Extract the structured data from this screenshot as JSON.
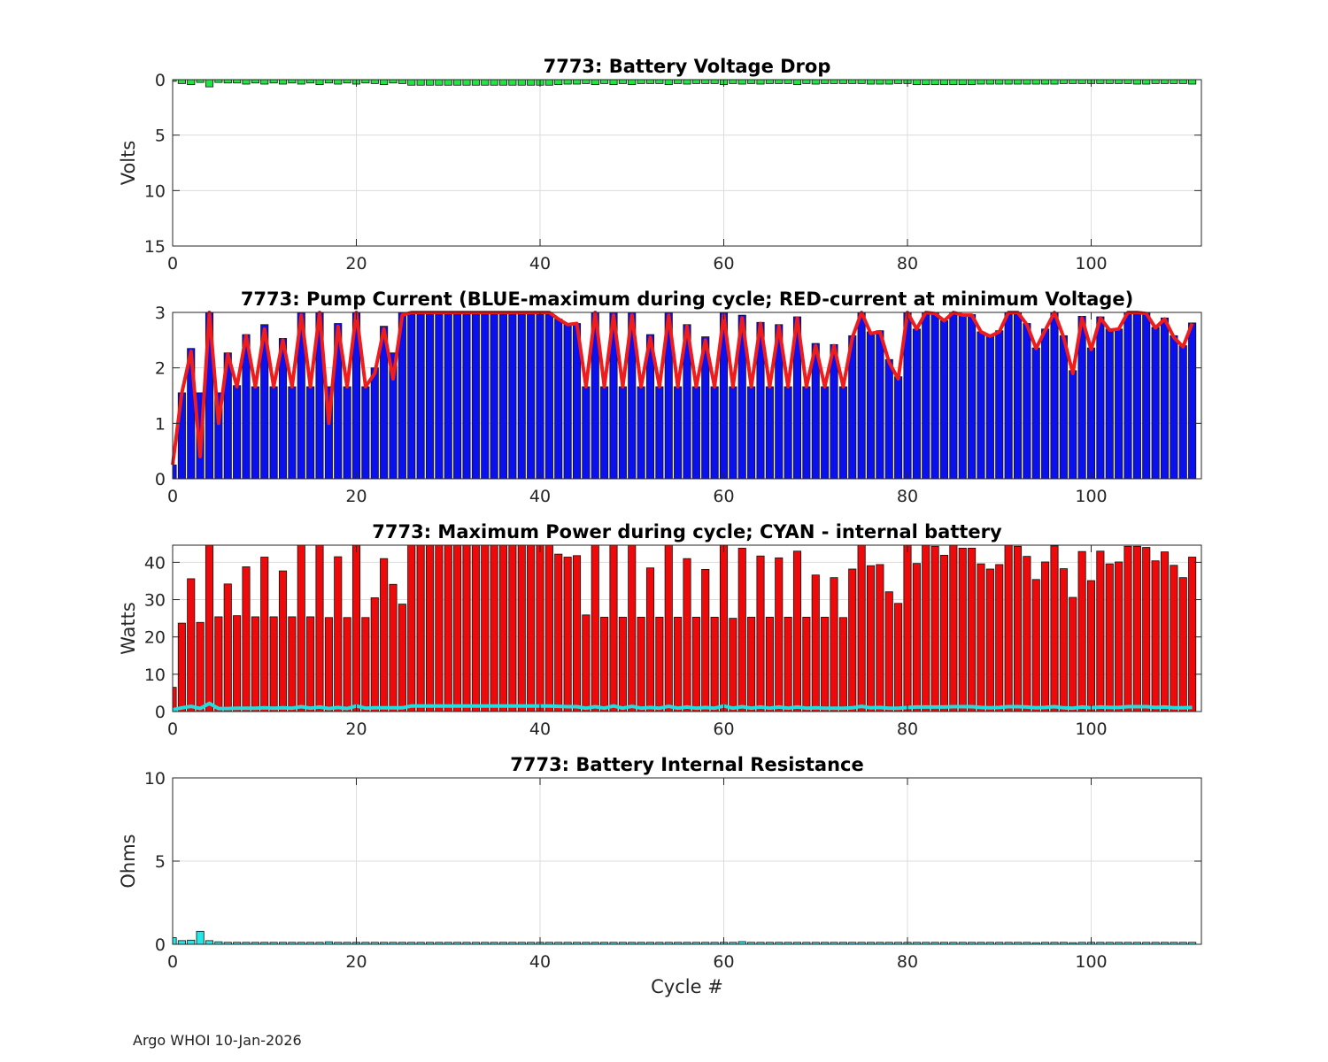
{
  "footer": "Argo WHOI 10-Jan-2026",
  "colors": {
    "green": "#1ee640",
    "blue": "#0a10ee",
    "red": "#ee0a0a",
    "cyan": "#22e8e8",
    "line_red": "#ee1c1c",
    "line_cyan": "#22dede"
  },
  "chart_data": [
    {
      "id": "voltage",
      "type": "bar",
      "title": "7773: Battery Voltage Drop",
      "ylabel": "Volts",
      "xlabel": "",
      "xlim": [
        0,
        112
      ],
      "ylim": [
        0,
        15
      ],
      "y_reversed": true,
      "xticks": [
        0,
        20,
        40,
        60,
        80,
        100
      ],
      "yticks": [
        0,
        5,
        10,
        15
      ],
      "grid": true,
      "bar_color": "green",
      "x": [
        0,
        1,
        2,
        3,
        4,
        5,
        6,
        7,
        8,
        9,
        10,
        11,
        12,
        13,
        14,
        15,
        16,
        17,
        18,
        19,
        20,
        21,
        22,
        23,
        24,
        25,
        26,
        27,
        28,
        29,
        30,
        31,
        32,
        33,
        34,
        35,
        36,
        37,
        38,
        39,
        40,
        41,
        42,
        43,
        44,
        45,
        46,
        47,
        48,
        49,
        50,
        51,
        52,
        53,
        54,
        55,
        56,
        57,
        58,
        59,
        60,
        61,
        62,
        63,
        64,
        65,
        66,
        67,
        68,
        69,
        70,
        71,
        72,
        73,
        74,
        75,
        76,
        77,
        78,
        79,
        80,
        81,
        82,
        83,
        84,
        85,
        86,
        87,
        88,
        89,
        90,
        91,
        92,
        93,
        94,
        95,
        96,
        97,
        98,
        99,
        100,
        101,
        102,
        103,
        104,
        105,
        106,
        107,
        108,
        109,
        110,
        111
      ],
      "values": [
        0.15,
        0.35,
        0.45,
        0.25,
        0.65,
        0.25,
        0.3,
        0.3,
        0.4,
        0.3,
        0.4,
        0.3,
        0.4,
        0.3,
        0.4,
        0.3,
        0.45,
        0.3,
        0.4,
        0.3,
        0.4,
        0.3,
        0.35,
        0.45,
        0.3,
        0.35,
        0.5,
        0.5,
        0.5,
        0.5,
        0.5,
        0.5,
        0.5,
        0.5,
        0.5,
        0.5,
        0.5,
        0.5,
        0.5,
        0.5,
        0.5,
        0.5,
        0.45,
        0.4,
        0.4,
        0.35,
        0.45,
        0.35,
        0.45,
        0.35,
        0.45,
        0.35,
        0.35,
        0.35,
        0.45,
        0.35,
        0.4,
        0.35,
        0.35,
        0.35,
        0.45,
        0.35,
        0.4,
        0.35,
        0.4,
        0.35,
        0.35,
        0.35,
        0.45,
        0.35,
        0.4,
        0.35,
        0.35,
        0.35,
        0.35,
        0.35,
        0.4,
        0.4,
        0.4,
        0.35,
        0.35,
        0.45,
        0.45,
        0.45,
        0.45,
        0.45,
        0.45,
        0.45,
        0.4,
        0.4,
        0.4,
        0.4,
        0.4,
        0.4,
        0.4,
        0.4,
        0.4,
        0.35,
        0.35,
        0.35,
        0.35,
        0.35,
        0.35,
        0.35,
        0.35,
        0.4,
        0.4,
        0.35,
        0.35,
        0.35,
        0.35,
        0.4
      ]
    },
    {
      "id": "current",
      "type": "bar",
      "title": "7773: Pump Current (BLUE-maximum during cycle; RED-current at minimum Voltage)",
      "ylabel": "",
      "xlabel": "",
      "xlim": [
        0,
        112
      ],
      "ylim": [
        0,
        3
      ],
      "xticks": [
        0,
        20,
        40,
        60,
        80,
        100
      ],
      "yticks": [
        0,
        1,
        2,
        3
      ],
      "grid": true,
      "bar_color": "blue",
      "line_color": "line_red",
      "x": [
        0,
        1,
        2,
        3,
        4,
        5,
        6,
        7,
        8,
        9,
        10,
        11,
        12,
        13,
        14,
        15,
        16,
        17,
        18,
        19,
        20,
        21,
        22,
        23,
        24,
        25,
        26,
        27,
        28,
        29,
        30,
        31,
        32,
        33,
        34,
        35,
        36,
        37,
        38,
        39,
        40,
        41,
        42,
        43,
        44,
        45,
        46,
        47,
        48,
        49,
        50,
        51,
        52,
        53,
        54,
        55,
        56,
        57,
        58,
        59,
        60,
        61,
        62,
        63,
        64,
        65,
        66,
        67,
        68,
        69,
        70,
        71,
        72,
        73,
        74,
        75,
        76,
        77,
        78,
        79,
        80,
        81,
        82,
        83,
        84,
        85,
        86,
        87,
        88,
        89,
        90,
        91,
        92,
        93,
        94,
        95,
        96,
        97,
        98,
        99,
        100,
        101,
        102,
        103,
        104,
        105,
        106,
        107,
        108,
        109,
        110,
        111
      ],
      "values": [
        0.25,
        1.55,
        2.35,
        1.55,
        3.0,
        1.55,
        2.27,
        1.68,
        2.6,
        1.66,
        2.78,
        1.66,
        2.53,
        1.66,
        3.0,
        1.66,
        3.0,
        1.66,
        2.8,
        1.66,
        3.0,
        1.66,
        2.0,
        2.75,
        2.27,
        3.0,
        3.0,
        3.0,
        3.0,
        3.0,
        3.0,
        3.0,
        3.0,
        3.0,
        3.0,
        3.0,
        3.0,
        3.0,
        3.0,
        3.0,
        3.0,
        3.0,
        2.88,
        2.8,
        2.8,
        1.66,
        3.0,
        1.66,
        3.0,
        1.66,
        3.0,
        1.66,
        2.6,
        1.66,
        3.0,
        1.66,
        2.78,
        1.66,
        2.56,
        1.66,
        3.0,
        1.66,
        2.95,
        1.66,
        2.82,
        1.66,
        2.78,
        1.66,
        2.92,
        1.66,
        2.44,
        1.66,
        2.42,
        1.66,
        2.58,
        3.0,
        2.65,
        2.67,
        2.15,
        1.84,
        3.0,
        2.7,
        3.0,
        3.0,
        2.85,
        3.0,
        2.97,
        2.96,
        2.65,
        2.57,
        2.67,
        3.0,
        3.0,
        2.8,
        2.36,
        2.7,
        3.0,
        2.58,
        1.95,
        2.93,
        2.36,
        2.92,
        2.7,
        2.7,
        3.0,
        3.0,
        3.0,
        2.73,
        2.9,
        2.58,
        2.4,
        2.81
      ],
      "line_values": [
        0.25,
        1.55,
        2.3,
        0.4,
        3.0,
        1.0,
        2.25,
        1.66,
        2.58,
        1.66,
        2.7,
        1.66,
        2.5,
        1.66,
        2.95,
        1.66,
        3.0,
        1.0,
        2.75,
        1.66,
        3.0,
        1.66,
        1.9,
        2.7,
        1.8,
        2.95,
        3.0,
        3.0,
        3.0,
        3.0,
        3.0,
        3.0,
        3.0,
        3.0,
        3.0,
        3.0,
        3.0,
        3.0,
        3.0,
        3.0,
        3.0,
        3.0,
        2.88,
        2.78,
        2.8,
        1.66,
        3.0,
        1.66,
        2.95,
        1.66,
        2.95,
        1.66,
        2.55,
        1.66,
        2.95,
        1.66,
        2.75,
        1.66,
        2.5,
        1.66,
        2.95,
        1.66,
        2.9,
        1.66,
        2.8,
        1.66,
        2.75,
        1.66,
        2.9,
        1.66,
        2.4,
        1.66,
        2.4,
        1.66,
        2.55,
        3.0,
        2.62,
        2.65,
        2.1,
        1.8,
        3.0,
        2.7,
        3.0,
        2.98,
        2.85,
        3.0,
        2.95,
        2.95,
        2.65,
        2.57,
        2.65,
        3.0,
        3.0,
        2.78,
        2.35,
        2.68,
        3.0,
        2.55,
        1.9,
        2.9,
        2.33,
        2.9,
        2.68,
        2.7,
        3.0,
        3.0,
        2.98,
        2.72,
        2.88,
        2.55,
        2.38,
        2.8
      ]
    },
    {
      "id": "power",
      "type": "bar",
      "title": "7773: Maximum Power during cycle; CYAN - internal battery",
      "ylabel": "Watts",
      "xlabel": "",
      "xlim": [
        0,
        112
      ],
      "ylim": [
        0,
        44.6
      ],
      "xticks": [
        0,
        20,
        40,
        60,
        80,
        100
      ],
      "yticks": [
        0,
        10,
        20,
        30,
        40
      ],
      "grid": true,
      "bar_color": "red",
      "line_color": "line_cyan",
      "x": [
        0,
        1,
        2,
        3,
        4,
        5,
        6,
        7,
        8,
        9,
        10,
        11,
        12,
        13,
        14,
        15,
        16,
        17,
        18,
        19,
        20,
        21,
        22,
        23,
        24,
        25,
        26,
        27,
        28,
        29,
        30,
        31,
        32,
        33,
        34,
        35,
        36,
        37,
        38,
        39,
        40,
        41,
        42,
        43,
        44,
        45,
        46,
        47,
        48,
        49,
        50,
        51,
        52,
        53,
        54,
        55,
        56,
        57,
        58,
        59,
        60,
        61,
        62,
        63,
        64,
        65,
        66,
        67,
        68,
        69,
        70,
        71,
        72,
        73,
        74,
        75,
        76,
        77,
        78,
        79,
        80,
        81,
        82,
        83,
        84,
        85,
        86,
        87,
        88,
        89,
        90,
        91,
        92,
        93,
        94,
        95,
        96,
        97,
        98,
        99,
        100,
        101,
        102,
        103,
        104,
        105,
        106,
        107,
        108,
        109,
        110,
        111
      ],
      "values": [
        6.5,
        23.7,
        35.6,
        23.9,
        44.6,
        25.4,
        34.2,
        25.7,
        38.8,
        25.4,
        41.4,
        25.4,
        37.7,
        25.4,
        44.6,
        25.4,
        44.6,
        25.2,
        41.5,
        25.2,
        44.6,
        25.2,
        30.5,
        41.0,
        34.1,
        28.8,
        44.6,
        44.6,
        44.6,
        44.6,
        44.6,
        44.6,
        44.6,
        44.6,
        44.6,
        44.6,
        44.6,
        44.6,
        44.6,
        44.6,
        44.6,
        44.6,
        42.2,
        41.4,
        41.8,
        25.9,
        44.6,
        25.3,
        44.6,
        25.3,
        44.6,
        25.3,
        38.5,
        25.3,
        44.6,
        25.3,
        41.0,
        25.3,
        38.1,
        25.3,
        44.6,
        25.0,
        43.8,
        25.3,
        41.7,
        25.3,
        41.2,
        25.3,
        43.0,
        25.3,
        36.6,
        25.3,
        35.9,
        25.2,
        38.2,
        44.6,
        39.1,
        39.4,
        32.1,
        29.0,
        44.6,
        39.7,
        44.6,
        44.3,
        41.9,
        44.6,
        43.8,
        43.8,
        39.6,
        38.2,
        39.4,
        44.6,
        44.3,
        41.6,
        35.4,
        40.1,
        44.4,
        38.3,
        30.6,
        42.9,
        35.1,
        43.0,
        39.6,
        40.1,
        44.3,
        44.3,
        44.0,
        40.4,
        42.8,
        39.2,
        35.9,
        41.4
      ],
      "line_values": [
        0.5,
        1.0,
        1.4,
        0.8,
        2.2,
        0.8,
        0.8,
        0.9,
        0.9,
        0.9,
        1.0,
        0.9,
        1.0,
        0.9,
        1.3,
        0.9,
        1.2,
        0.8,
        1.1,
        0.8,
        1.5,
        0.9,
        1.0,
        1.0,
        1.0,
        1.0,
        1.5,
        1.5,
        1.5,
        1.5,
        1.5,
        1.5,
        1.5,
        1.5,
        1.5,
        1.5,
        1.5,
        1.5,
        1.5,
        1.5,
        1.5,
        1.5,
        1.4,
        1.3,
        1.3,
        0.9,
        1.3,
        0.9,
        1.5,
        0.9,
        1.4,
        0.9,
        1.1,
        0.9,
        1.4,
        0.9,
        1.2,
        0.9,
        1.1,
        0.9,
        1.5,
        0.9,
        1.3,
        0.9,
        1.2,
        0.9,
        1.2,
        0.9,
        1.2,
        0.9,
        1.0,
        0.9,
        0.9,
        0.9,
        1.0,
        1.4,
        1.0,
        1.1,
        0.9,
        0.9,
        1.1,
        1.2,
        1.2,
        1.2,
        1.2,
        1.3,
        1.3,
        1.3,
        1.1,
        1.0,
        1.1,
        1.3,
        1.3,
        1.2,
        1.0,
        1.1,
        1.3,
        1.0,
        0.9,
        1.2,
        1.0,
        1.2,
        1.1,
        1.1,
        1.3,
        1.3,
        1.3,
        1.1,
        1.2,
        1.0,
        1.0,
        1.1
      ]
    },
    {
      "id": "resistance",
      "type": "bar",
      "title": "7773: Battery Internal Resistance",
      "ylabel": "Ohms",
      "xlabel": "Cycle #",
      "xlim": [
        0,
        112
      ],
      "ylim": [
        0,
        10
      ],
      "xticks": [
        0,
        20,
        40,
        60,
        80,
        100
      ],
      "yticks": [
        0,
        5,
        10
      ],
      "grid": true,
      "bar_color": "cyan",
      "x": [
        0,
        1,
        2,
        3,
        4,
        5,
        6,
        7,
        8,
        9,
        10,
        11,
        12,
        13,
        14,
        15,
        16,
        17,
        18,
        19,
        20,
        21,
        22,
        23,
        24,
        25,
        26,
        27,
        28,
        29,
        30,
        31,
        32,
        33,
        34,
        35,
        36,
        37,
        38,
        39,
        40,
        41,
        42,
        43,
        44,
        45,
        46,
        47,
        48,
        49,
        50,
        51,
        52,
        53,
        54,
        55,
        56,
        57,
        58,
        59,
        60,
        61,
        62,
        63,
        64,
        65,
        66,
        67,
        68,
        69,
        70,
        71,
        72,
        73,
        74,
        75,
        76,
        77,
        78,
        79,
        80,
        81,
        82,
        83,
        84,
        85,
        86,
        87,
        88,
        89,
        90,
        91,
        92,
        93,
        94,
        95,
        96,
        97,
        98,
        99,
        100,
        101,
        102,
        103,
        104,
        105,
        106,
        107,
        108,
        109,
        110,
        111
      ],
      "values": [
        0.4,
        0.22,
        0.25,
        0.78,
        0.22,
        0.15,
        0.12,
        0.12,
        0.12,
        0.12,
        0.12,
        0.12,
        0.12,
        0.12,
        0.12,
        0.12,
        0.12,
        0.15,
        0.12,
        0.12,
        0.12,
        0.12,
        0.12,
        0.12,
        0.12,
        0.12,
        0.12,
        0.12,
        0.12,
        0.12,
        0.12,
        0.12,
        0.12,
        0.12,
        0.12,
        0.12,
        0.12,
        0.12,
        0.12,
        0.12,
        0.12,
        0.12,
        0.12,
        0.12,
        0.12,
        0.12,
        0.12,
        0.12,
        0.12,
        0.12,
        0.12,
        0.12,
        0.12,
        0.12,
        0.12,
        0.12,
        0.12,
        0.12,
        0.12,
        0.12,
        0.12,
        0.12,
        0.16,
        0.12,
        0.12,
        0.12,
        0.12,
        0.12,
        0.12,
        0.12,
        0.12,
        0.12,
        0.12,
        0.12,
        0.12,
        0.12,
        0.12,
        0.12,
        0.12,
        0.12,
        0.12,
        0.12,
        0.12,
        0.12,
        0.12,
        0.12,
        0.12,
        0.12,
        0.12,
        0.12,
        0.12,
        0.12,
        0.12,
        0.12,
        0.1,
        0.12,
        0.12,
        0.12,
        0.1,
        0.12,
        0.12,
        0.12,
        0.12,
        0.12,
        0.12,
        0.12,
        0.12,
        0.12,
        0.12,
        0.12,
        0.12,
        0.12
      ]
    }
  ]
}
